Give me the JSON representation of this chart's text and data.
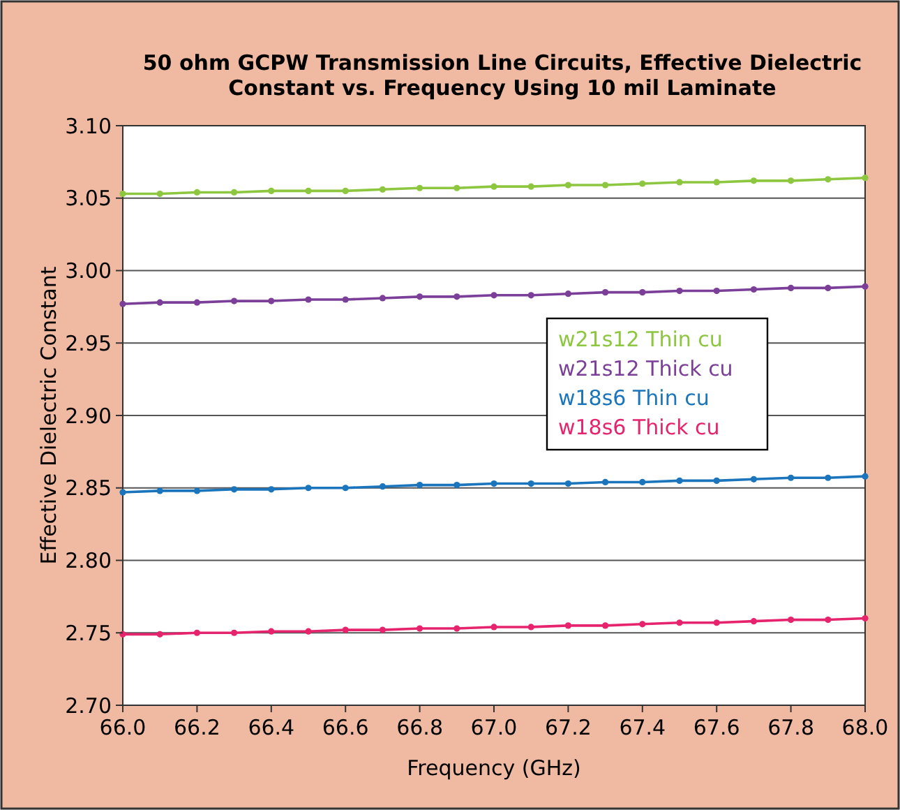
{
  "chart_data": {
    "type": "line",
    "title": "50 ohm GCPW Transmission Line Circuits, Effective Dielectric\nConstant vs. Frequency Using 10 mil Laminate",
    "xlabel": "Frequency (GHz)",
    "ylabel": "Effective Dielectric Constant",
    "x": [
      66.0,
      66.1,
      66.2,
      66.3,
      66.4,
      66.5,
      66.6,
      66.7,
      66.8,
      66.9,
      67.0,
      67.1,
      67.2,
      67.3,
      67.4,
      67.5,
      67.6,
      67.7,
      67.8,
      67.9,
      68.0
    ],
    "series": [
      {
        "name": "w21s12 Thin cu",
        "color": "#8dc63f",
        "values": [
          3.053,
          3.053,
          3.054,
          3.054,
          3.055,
          3.055,
          3.055,
          3.056,
          3.057,
          3.057,
          3.058,
          3.058,
          3.059,
          3.059,
          3.06,
          3.061,
          3.061,
          3.062,
          3.062,
          3.063,
          3.064
        ]
      },
      {
        "name": "w21s12 Thick cu",
        "color": "#7b3f99",
        "values": [
          2.977,
          2.978,
          2.978,
          2.979,
          2.979,
          2.98,
          2.98,
          2.981,
          2.982,
          2.982,
          2.983,
          2.983,
          2.984,
          2.985,
          2.985,
          2.986,
          2.986,
          2.987,
          2.988,
          2.988,
          2.989
        ]
      },
      {
        "name": "w18s6 Thin cu",
        "color": "#1a75bc",
        "values": [
          2.847,
          2.848,
          2.848,
          2.849,
          2.849,
          2.85,
          2.85,
          2.851,
          2.852,
          2.852,
          2.853,
          2.853,
          2.853,
          2.854,
          2.854,
          2.855,
          2.855,
          2.856,
          2.857,
          2.857,
          2.858
        ]
      },
      {
        "name": "w18s6 Thick cu",
        "color": "#e6246e",
        "values": [
          2.749,
          2.749,
          2.75,
          2.75,
          2.751,
          2.751,
          2.752,
          2.752,
          2.753,
          2.753,
          2.754,
          2.754,
          2.755,
          2.755,
          2.756,
          2.757,
          2.757,
          2.758,
          2.759,
          2.759,
          2.76
        ]
      }
    ],
    "xlim": [
      66.0,
      68.0
    ],
    "xticks": [
      {
        "value": 66,
        "label": "66.0"
      },
      {
        "value": 66.2,
        "label": "66.2"
      },
      {
        "value": 66.4,
        "label": "66.4"
      },
      {
        "value": 66.6,
        "label": "66.6"
      },
      {
        "value": 66.8,
        "label": "66.8"
      },
      {
        "value": 67,
        "label": "67.0"
      },
      {
        "value": 67.2,
        "label": "67.2"
      },
      {
        "value": 67.4,
        "label": "67.4"
      },
      {
        "value": 67.6,
        "label": "67.6"
      },
      {
        "value": 67.8,
        "label": "67.8"
      },
      {
        "value": 68,
        "label": "68.0"
      }
    ],
    "ylim": [
      2.7,
      3.1
    ],
    "yticks": [
      {
        "value": 2.7,
        "label": "2.70"
      },
      {
        "value": 2.75,
        "label": "2.75"
      },
      {
        "value": 2.8,
        "label": "2.80"
      },
      {
        "value": 2.85,
        "label": "2.85"
      },
      {
        "value": 2.9,
        "label": "2.90"
      },
      {
        "value": 2.95,
        "label": "2.95"
      },
      {
        "value": 3.0,
        "label": "3.00"
      },
      {
        "value": 3.05,
        "label": "3.05"
      },
      {
        "value": 3.1,
        "label": "3.10"
      }
    ],
    "grid": "y",
    "legend": "right",
    "marker": "circle",
    "line_style": "solid"
  }
}
